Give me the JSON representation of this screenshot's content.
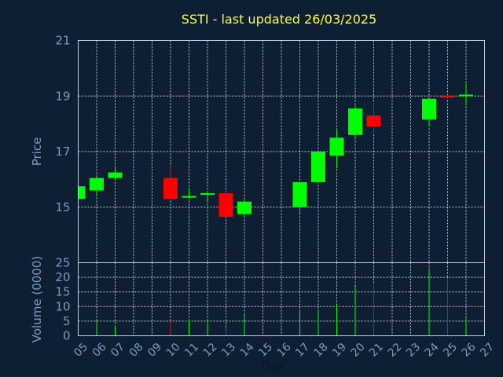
{
  "chart_data": {
    "type": "candlestick",
    "title": "SSTI - last updated 26/03/2025",
    "price_panel": {
      "ylabel": "Price",
      "ylim": [
        13,
        21
      ],
      "yticks": [
        15,
        17,
        19,
        21
      ]
    },
    "volume_panel": {
      "ylabel": "Volume (0000)",
      "ylim": [
        0,
        25
      ],
      "yticks": [
        0,
        5,
        10,
        15,
        20,
        25
      ]
    },
    "xlabel": "Day",
    "x_ticks": [
      "05",
      "06",
      "07",
      "08",
      "09",
      "10",
      "11",
      "12",
      "13",
      "14",
      "15",
      "16",
      "17",
      "18",
      "19",
      "20",
      "21",
      "22",
      "23",
      "24",
      "25",
      "26",
      "27"
    ],
    "colors": {
      "up": "#00ff00",
      "down": "#ff0000"
    },
    "candles": [
      {
        "day": 5,
        "open": 15.3,
        "high": 15.75,
        "low": 15.25,
        "close": 15.75,
        "volume": 0
      },
      {
        "day": 6,
        "open": 15.6,
        "high": 16.15,
        "low": 15.45,
        "close": 16.05,
        "volume": 5
      },
      {
        "day": 7,
        "open": 16.05,
        "high": 16.4,
        "low": 16.0,
        "close": 16.25,
        "volume": 3.5
      },
      {
        "day": 10,
        "open": 16.05,
        "high": 16.45,
        "low": 15.25,
        "close": 15.3,
        "volume": 5
      },
      {
        "day": 11,
        "open": 15.35,
        "high": 15.7,
        "low": 15.3,
        "close": 15.4,
        "volume": 5.5
      },
      {
        "day": 12,
        "open": 15.5,
        "high": 15.55,
        "low": 15.2,
        "close": 15.5,
        "volume": 5
      },
      {
        "day": 13,
        "open": 15.5,
        "high": 15.55,
        "low": 14.65,
        "close": 14.65,
        "volume": 3
      },
      {
        "day": 14,
        "open": 14.75,
        "high": 15.35,
        "low": 14.6,
        "close": 15.2,
        "volume": 7.5
      },
      {
        "day": 17,
        "open": 15.0,
        "high": 15.9,
        "low": 14.8,
        "close": 15.9,
        "volume": 9
      },
      {
        "day": 18,
        "open": 15.9,
        "high": 17.0,
        "low": 15.85,
        "close": 17.0,
        "volume": 9
      },
      {
        "day": 19,
        "open": 16.85,
        "high": 17.8,
        "low": 16.4,
        "close": 17.5,
        "volume": 10.5
      },
      {
        "day": 20,
        "open": 17.6,
        "high": 18.65,
        "low": 17.45,
        "close": 18.55,
        "volume": 17
      },
      {
        "day": 21,
        "open": 18.3,
        "high": 18.75,
        "low": 17.6,
        "close": 17.9,
        "volume": 17.5
      },
      {
        "day": 24,
        "open": 18.15,
        "high": 18.9,
        "low": 17.9,
        "close": 18.9,
        "volume": 23
      },
      {
        "day": 25,
        "open": 19.0,
        "high": 19.05,
        "low": 18.9,
        "close": 18.95,
        "volume": 19.5
      },
      {
        "day": 26,
        "open": 19.0,
        "high": 19.45,
        "low": 18.65,
        "close": 19.05,
        "volume": 6.5
      }
    ]
  }
}
